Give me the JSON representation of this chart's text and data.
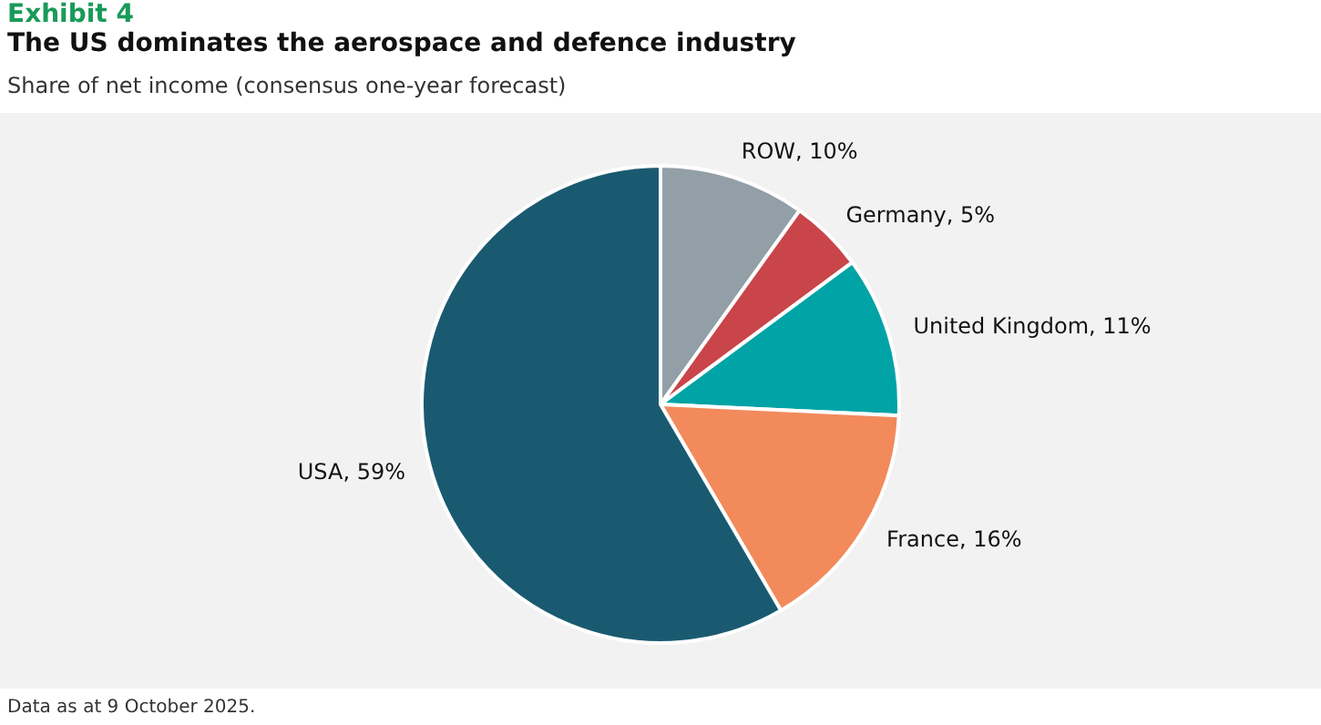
{
  "chart_data": {
    "type": "pie",
    "title": "The US dominates the aerospace and defence industry",
    "subtitle": "Share of net income (consensus one-year forecast)",
    "annotations": [
      "Exhibit 4",
      "Data as at 9 October 2025."
    ],
    "categories": [
      "ROW",
      "Germany",
      "United Kingdom",
      "France",
      "USA"
    ],
    "values": [
      10,
      5,
      11,
      16,
      59
    ],
    "value_labels": [
      "10%",
      "5%",
      "11%",
      "16%",
      "59%"
    ],
    "colors": [
      "#939fa7",
      "#c9454a",
      "#00a3a6",
      "#f28a5c",
      "#1a5a70"
    ],
    "legend": false
  }
}
